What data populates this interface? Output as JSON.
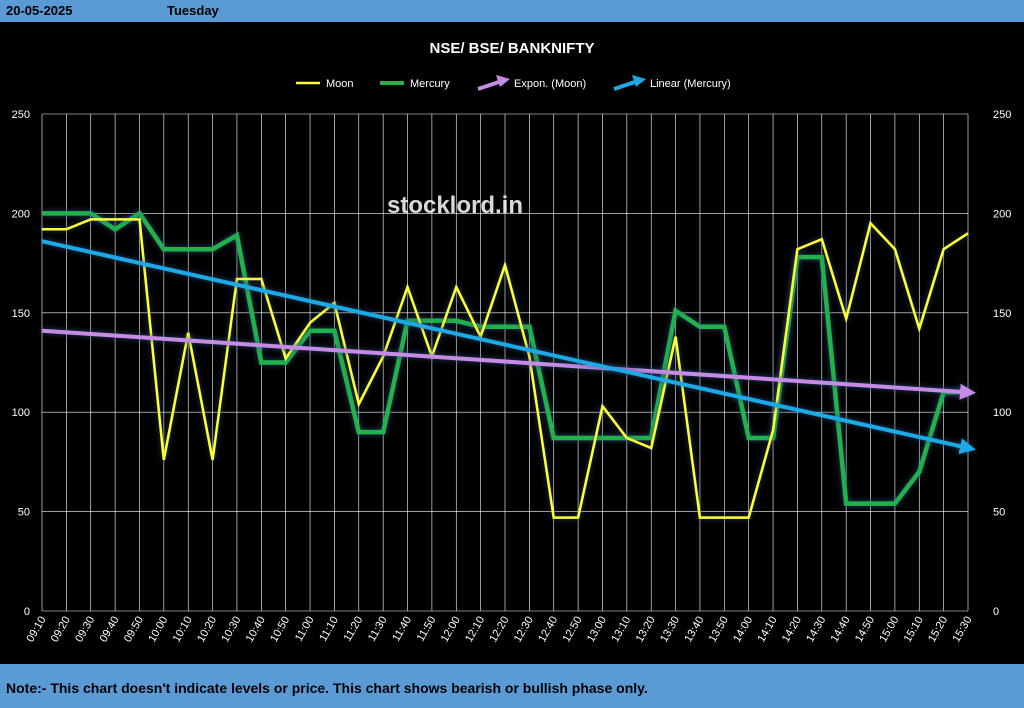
{
  "header": {
    "date": "20-05-2025",
    "day": "Tuesday"
  },
  "footer": {
    "note": "Note:- This chart doesn't indicate levels or price. This chart shows bearish or bullish phase only."
  },
  "watermark": "stocklord.in",
  "colors": {
    "moon": "#ffff33",
    "mercury": "#22b14c",
    "expon": "#c58be6",
    "linear": "#1ca9e6",
    "grid": "#ffffff",
    "header_bar": "#5b9bd5"
  },
  "chart_data": {
    "type": "line",
    "title": "NSE/ BSE/ BANKNIFTY",
    "xlabel": "",
    "ylabel": "",
    "ylim": [
      0,
      250
    ],
    "yticks": [
      0,
      50,
      100,
      150,
      200,
      250
    ],
    "secondary_yticks": [
      0,
      50,
      100,
      150,
      200,
      250
    ],
    "grid": true,
    "legend_position": "top",
    "categories": [
      "09:10",
      "09:20",
      "09:30",
      "09:40",
      "09:50",
      "10:00",
      "10:10",
      "10:20",
      "10:30",
      "10:40",
      "10:50",
      "11:00",
      "11:10",
      "11:20",
      "11:30",
      "11:40",
      "11:50",
      "12:00",
      "12:10",
      "12:20",
      "12:30",
      "12:40",
      "12:50",
      "13:00",
      "13:10",
      "13:20",
      "13:30",
      "13:40",
      "13:50",
      "14:00",
      "14:10",
      "14:20",
      "14:30",
      "14:40",
      "14:50",
      "15:00",
      "15:10",
      "15:20",
      "15:30"
    ],
    "series": [
      {
        "name": "Moon",
        "values": [
          192,
          192,
          197,
          197,
          197,
          76,
          140,
          76,
          167,
          167,
          127,
          145,
          155,
          104,
          128,
          163,
          128,
          163,
          138,
          174,
          128,
          47,
          47,
          103,
          87,
          82,
          138,
          47,
          47,
          47,
          91,
          182,
          187,
          147,
          195,
          182,
          142,
          182,
          190
        ]
      },
      {
        "name": "Mercury",
        "values": [
          200,
          200,
          200,
          192,
          200,
          182,
          182,
          182,
          189,
          125,
          125,
          141,
          141,
          90,
          90,
          146,
          146,
          146,
          143,
          143,
          143,
          87,
          87,
          87,
          87,
          87,
          151,
          143,
          143,
          87,
          87,
          178,
          178,
          54,
          54,
          54,
          70,
          110,
          110
        ]
      }
    ],
    "trendlines": [
      {
        "name": "Expon. (Moon)",
        "start": 141,
        "end": 110
      },
      {
        "name": "Linear (Mercury)",
        "start": 186,
        "end": 82
      }
    ]
  }
}
